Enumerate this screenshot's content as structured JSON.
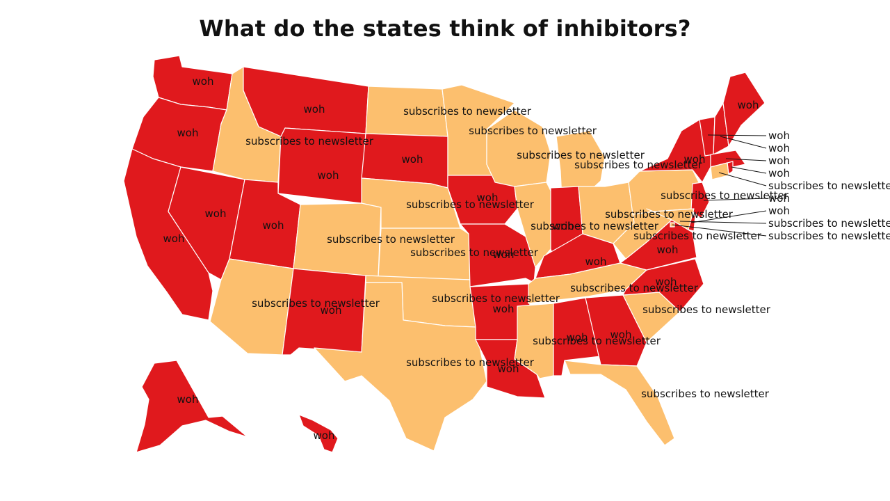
{
  "title": "What do the states think of inhibitors?",
  "legend_categories": {
    "woh": "#e0191d",
    "subscribes to newsletter": "#fcbf6e"
  },
  "states": [
    {
      "id": "WA",
      "category": "woh"
    },
    {
      "id": "OR",
      "category": "woh"
    },
    {
      "id": "CA",
      "category": "woh"
    },
    {
      "id": "NV",
      "category": "woh"
    },
    {
      "id": "ID",
      "category": "subscribes to newsletter"
    },
    {
      "id": "MT",
      "category": "woh"
    },
    {
      "id": "WY",
      "category": "woh"
    },
    {
      "id": "UT",
      "category": "woh"
    },
    {
      "id": "AZ",
      "category": "subscribes to newsletter"
    },
    {
      "id": "CO",
      "category": "subscribes to newsletter"
    },
    {
      "id": "NM",
      "category": "woh"
    },
    {
      "id": "ND",
      "category": "subscribes to newsletter"
    },
    {
      "id": "SD",
      "category": "woh"
    },
    {
      "id": "NE",
      "category": "subscribes to newsletter"
    },
    {
      "id": "KS",
      "category": "subscribes to newsletter"
    },
    {
      "id": "OK",
      "category": "subscribes to newsletter"
    },
    {
      "id": "TX",
      "category": "subscribes to newsletter"
    },
    {
      "id": "MN",
      "category": "subscribes to newsletter"
    },
    {
      "id": "IA",
      "category": "woh"
    },
    {
      "id": "MO",
      "category": "woh"
    },
    {
      "id": "AR",
      "category": "woh"
    },
    {
      "id": "LA",
      "category": "woh"
    },
    {
      "id": "WI",
      "category": "subscribes to newsletter"
    },
    {
      "id": "IL",
      "category": "subscribes to newsletter"
    },
    {
      "id": "MI",
      "category": "subscribes to newsletter"
    },
    {
      "id": "IN",
      "category": "woh"
    },
    {
      "id": "OH",
      "category": "subscribes to newsletter"
    },
    {
      "id": "KY",
      "category": "woh"
    },
    {
      "id": "TN",
      "category": "subscribes to newsletter"
    },
    {
      "id": "MS",
      "category": "subscribes to newsletter"
    },
    {
      "id": "AL",
      "category": "woh"
    },
    {
      "id": "GA",
      "category": "woh"
    },
    {
      "id": "FL",
      "category": "subscribes to newsletter"
    },
    {
      "id": "SC",
      "category": "subscribes to newsletter"
    },
    {
      "id": "NC",
      "category": "woh"
    },
    {
      "id": "VA",
      "category": "woh"
    },
    {
      "id": "WV",
      "category": "subscribes to newsletter"
    },
    {
      "id": "PA",
      "category": "subscribes to newsletter"
    },
    {
      "id": "NY",
      "category": "woh"
    },
    {
      "id": "VT",
      "category": "woh"
    },
    {
      "id": "NH",
      "category": "woh"
    },
    {
      "id": "ME",
      "category": "woh"
    },
    {
      "id": "MA",
      "category": "woh"
    },
    {
      "id": "RI",
      "category": "woh"
    },
    {
      "id": "CT",
      "category": "subscribes to newsletter"
    },
    {
      "id": "NJ",
      "category": "woh"
    },
    {
      "id": "DE",
      "category": "woh"
    },
    {
      "id": "MD",
      "category": "subscribes to newsletter"
    },
    {
      "id": "DC",
      "category": "subscribes to newsletter"
    },
    {
      "id": "AK",
      "category": "woh"
    },
    {
      "id": "HI",
      "category": "woh"
    }
  ],
  "labels": [
    {
      "id": "WA",
      "text": "woh"
    },
    {
      "id": "OR",
      "text": "woh"
    },
    {
      "id": "CA",
      "text": "woh"
    },
    {
      "id": "NV",
      "text": "woh"
    },
    {
      "id": "ID",
      "text": "subscribes to newsletter"
    },
    {
      "id": "MT",
      "text": "woh"
    },
    {
      "id": "WY",
      "text": "woh"
    },
    {
      "id": "UT",
      "text": "woh"
    },
    {
      "id": "AZ",
      "text": "subscribes to newsletter"
    },
    {
      "id": "CO",
      "text": "subscribes to newsletter"
    },
    {
      "id": "NM",
      "text": "woh"
    },
    {
      "id": "ND",
      "text": "subscribes to newsletter"
    },
    {
      "id": "SD",
      "text": "woh"
    },
    {
      "id": "NE",
      "text": "subscribes to newsletter"
    },
    {
      "id": "KS",
      "text": "subscribes to newsletter"
    },
    {
      "id": "OK",
      "text": "subscribes to newsletter"
    },
    {
      "id": "TX",
      "text": "subscribes to newsletter"
    },
    {
      "id": "MN",
      "text": "subscribes to newsletter"
    },
    {
      "id": "IA",
      "text": "woh"
    },
    {
      "id": "MO",
      "text": "woh"
    },
    {
      "id": "AR",
      "text": "woh"
    },
    {
      "id": "LA",
      "text": "woh"
    },
    {
      "id": "WI",
      "text": "subscribes to newsletter"
    },
    {
      "id": "IL",
      "text": "subscribes to newsletter"
    },
    {
      "id": "MI",
      "text": "subscribes to newsletter"
    },
    {
      "id": "IN",
      "text": "woh"
    },
    {
      "id": "OH",
      "text": "subscribes to newsletter"
    },
    {
      "id": "KY",
      "text": "woh"
    },
    {
      "id": "TN",
      "text": "subscribes to newsletter"
    },
    {
      "id": "MS",
      "text": "subscribes to newsletter"
    },
    {
      "id": "AL",
      "text": "woh"
    },
    {
      "id": "GA",
      "text": "woh"
    },
    {
      "id": "FL",
      "text": "subscribes to newsletter"
    },
    {
      "id": "SC",
      "text": "subscribes to newsletter"
    },
    {
      "id": "NC",
      "text": "woh"
    },
    {
      "id": "VA",
      "text": "woh"
    },
    {
      "id": "WV",
      "text": "subscribes to newsletter"
    },
    {
      "id": "PA",
      "text": "subscribes to newsletter"
    },
    {
      "id": "NY",
      "text": "woh"
    },
    {
      "id": "ME",
      "text": "woh"
    },
    {
      "id": "VT",
      "text": "woh"
    },
    {
      "id": "NH",
      "text": "woh"
    },
    {
      "id": "MA",
      "text": "woh"
    },
    {
      "id": "RI",
      "text": "woh"
    },
    {
      "id": "CT",
      "text": "subscribes to newsletter"
    },
    {
      "id": "NJ",
      "text": "woh"
    },
    {
      "id": "DE",
      "text": "woh"
    },
    {
      "id": "MD",
      "text": "subscribes to newsletter"
    },
    {
      "id": "DC",
      "text": "subscribes to newsletter DC"
    },
    {
      "id": "AK",
      "text": "woh"
    },
    {
      "id": "HI",
      "text": "woh"
    }
  ]
}
